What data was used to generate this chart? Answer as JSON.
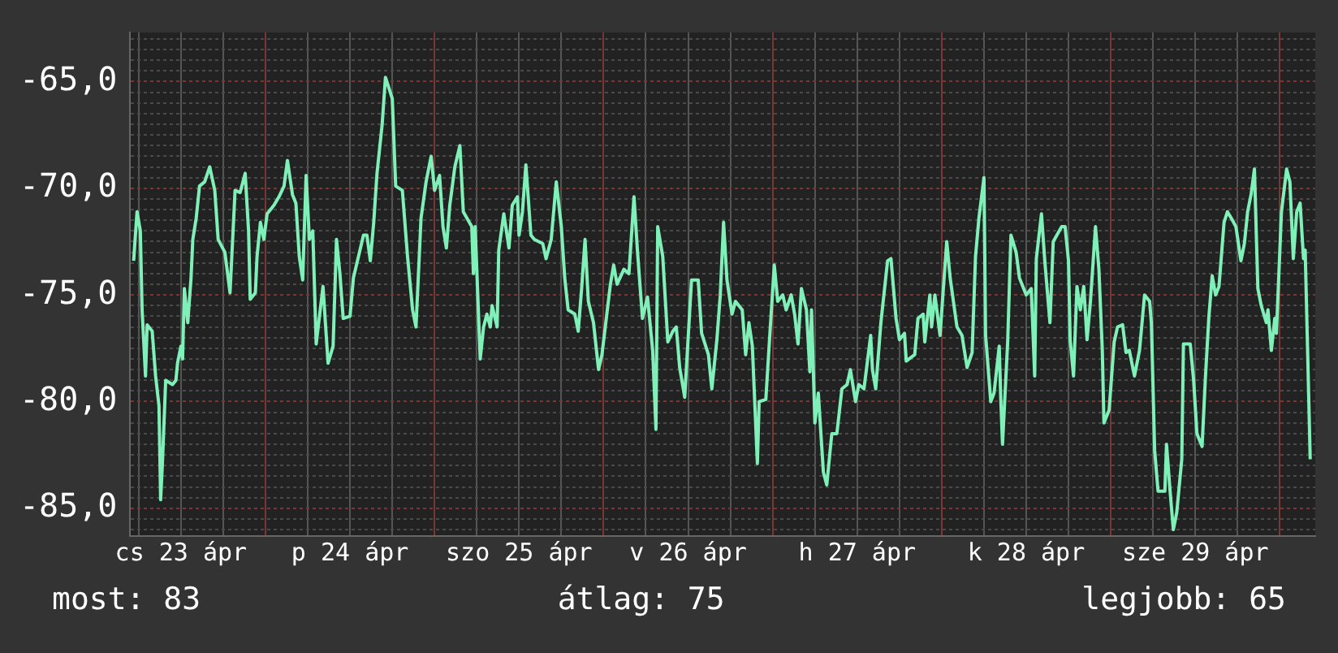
{
  "chart_data": {
    "type": "line",
    "grid": true,
    "legend": false,
    "marker": "none",
    "line_style": "solid",
    "xlim": [
      "--04-23T04:48",
      "--04-30T05:02"
    ],
    "ylim": [
      -86.3,
      -62.7
    ],
    "xticks": [
      {
        "value": "--04-23T06:00",
        "label": null
      },
      {
        "value": "--04-23T12:00",
        "label": "cs 23 ápr"
      },
      {
        "value": "--04-23T18:00",
        "label": null
      },
      {
        "value": "--04-24T00:00",
        "label": null
      },
      {
        "value": "--04-24T06:00",
        "label": null
      },
      {
        "value": "--04-24T12:00",
        "label": "p 24 ápr"
      },
      {
        "value": "--04-24T18:00",
        "label": null
      },
      {
        "value": "--04-25T00:00",
        "label": null
      },
      {
        "value": "--04-25T06:00",
        "label": null
      },
      {
        "value": "--04-25T12:00",
        "label": "szo 25 ápr"
      },
      {
        "value": "--04-25T18:00",
        "label": null
      },
      {
        "value": "--04-26T00:00",
        "label": null
      },
      {
        "value": "--04-26T06:00",
        "label": null
      },
      {
        "value": "--04-26T12:00",
        "label": "v 26 ápr"
      },
      {
        "value": "--04-26T18:00",
        "label": null
      },
      {
        "value": "--04-27T00:00",
        "label": null
      },
      {
        "value": "--04-27T06:00",
        "label": null
      },
      {
        "value": "--04-27T12:00",
        "label": "h 27 ápr"
      },
      {
        "value": "--04-27T18:00",
        "label": null
      },
      {
        "value": "--04-28T00:00",
        "label": null
      },
      {
        "value": "--04-28T06:00",
        "label": null
      },
      {
        "value": "--04-28T12:00",
        "label": "k 28 ápr"
      },
      {
        "value": "--04-28T18:00",
        "label": null
      },
      {
        "value": "--04-29T00:00",
        "label": null
      },
      {
        "value": "--04-29T06:00",
        "label": null
      },
      {
        "value": "--04-29T12:00",
        "label": "sze 29 ápr"
      },
      {
        "value": "--04-29T18:00",
        "label": null
      },
      {
        "value": "--04-30T00:00",
        "label": null
      }
    ],
    "yticks": [
      {
        "value": -86,
        "label": null
      },
      {
        "value": -85.5,
        "label": null
      },
      {
        "value": -85,
        "label": "-85,0"
      },
      {
        "value": -84.5,
        "label": null
      },
      {
        "value": -84,
        "label": null
      },
      {
        "value": -83.5,
        "label": null
      },
      {
        "value": -83,
        "label": null
      },
      {
        "value": -82.5,
        "label": null
      },
      {
        "value": -82,
        "label": null
      },
      {
        "value": -81.5,
        "label": null
      },
      {
        "value": -81,
        "label": null
      },
      {
        "value": -80.5,
        "label": null
      },
      {
        "value": -80,
        "label": "-80,0"
      },
      {
        "value": -79.5,
        "label": null
      },
      {
        "value": -79,
        "label": null
      },
      {
        "value": -78.5,
        "label": null
      },
      {
        "value": -78,
        "label": null
      },
      {
        "value": -77.5,
        "label": null
      },
      {
        "value": -77,
        "label": null
      },
      {
        "value": -76.5,
        "label": null
      },
      {
        "value": -76,
        "label": null
      },
      {
        "value": -75.5,
        "label": null
      },
      {
        "value": -75,
        "label": "-75,0"
      },
      {
        "value": -74.5,
        "label": null
      },
      {
        "value": -74,
        "label": null
      },
      {
        "value": -73.5,
        "label": null
      },
      {
        "value": -73,
        "label": null
      },
      {
        "value": -72.5,
        "label": null
      },
      {
        "value": -72,
        "label": null
      },
      {
        "value": -71.5,
        "label": null
      },
      {
        "value": -71,
        "label": null
      },
      {
        "value": -70.5,
        "label": null
      },
      {
        "value": -70,
        "label": "-70,0"
      },
      {
        "value": -69.5,
        "label": null
      },
      {
        "value": -69,
        "label": null
      },
      {
        "value": -68.5,
        "label": null
      },
      {
        "value": -68,
        "label": null
      },
      {
        "value": -67.5,
        "label": null
      },
      {
        "value": -67,
        "label": null
      },
      {
        "value": -66.5,
        "label": null
      },
      {
        "value": -66,
        "label": null
      },
      {
        "value": -65.5,
        "label": null
      },
      {
        "value": -65,
        "label": "-65,0"
      },
      {
        "value": -64.5,
        "label": null
      },
      {
        "value": -64,
        "label": null
      },
      {
        "value": -63.5,
        "label": null
      },
      {
        "value": -63,
        "label": null
      }
    ],
    "annotations": [
      "most: 83",
      "átlag: 75",
      "legjobb: 65"
    ],
    "series": [
      {
        "color": "#7ff0b8",
        "x": [
          "--04-23T05:17",
          "--04-23T05:46",
          "--04-23T06:14",
          "--04-23T06:29",
          "--04-23T06:58",
          "--04-23T07:12",
          "--04-23T07:55",
          "--04-23T08:24",
          "--04-23T08:53",
          "--04-23T09:07",
          "--04-23T09:22",
          "--04-23T09:50",
          "--04-23T10:48",
          "--04-23T11:17",
          "--04-23T11:31",
          "--04-23T12:00",
          "--04-23T12:14",
          "--04-23T12:29",
          "--04-23T12:58",
          "--04-23T13:26",
          "--04-23T13:41",
          "--04-23T14:10",
          "--04-23T14:38",
          "--04-23T15:22",
          "--04-23T16:05",
          "--04-23T16:48",
          "--04-23T17:17",
          "--04-23T18:14",
          "--04-23T18:58",
          "--04-23T19:41",
          "--04-23T20:24",
          "--04-23T21:07",
          "--04-23T21:36",
          "--04-23T21:50",
          "--04-23T22:34",
          "--04-23T22:48",
          "--04-23T23:17",
          "--04-23T23:46",
          "--04-24T00:14",
          "--04-24T01:12",
          "--04-24T01:55",
          "--04-24T02:38",
          "--04-24T03:07",
          "--04-24T03:50",
          "--04-24T04:19",
          "--04-24T04:48",
          "--04-24T05:17",
          "--04-24T05:46",
          "--04-24T06:14",
          "--04-24T06:43",
          "--04-24T07:12",
          "--04-24T08:10",
          "--04-24T08:53",
          "--04-24T09:36",
          "--04-24T10:05",
          "--04-24T10:34",
          "--04-24T11:02",
          "--04-24T12:00",
          "--04-24T12:29",
          "--04-24T13:12",
          "--04-24T13:55",
          "--04-24T14:24",
          "--04-24T14:53",
          "--04-24T15:22",
          "--04-24T15:50",
          "--04-24T16:34",
          "--04-24T17:02",
          "--04-24T18:00",
          "--04-24T18:29",
          "--04-24T19:26",
          "--04-24T20:10",
          "--04-24T20:53",
          "--04-24T21:22",
          "--04-24T22:05",
          "--04-24T22:48",
          "--04-24T23:31",
          "--04-25T00:00",
          "--04-25T00:43",
          "--04-25T01:12",
          "--04-25T01:41",
          "--04-25T02:10",
          "--04-25T02:53",
          "--04-25T03:36",
          "--04-25T04:05",
          "--04-25T05:17",
          "--04-25T05:31",
          "--04-25T05:46",
          "--04-25T06:29",
          "--04-25T06:58",
          "--04-25T07:26",
          "--04-25T07:55",
          "--04-25T08:10",
          "--04-25T08:53",
          "--04-25T09:07",
          "--04-25T09:50",
          "--04-25T10:34",
          "--04-25T11:02",
          "--04-25T11:46",
          "--04-25T12:00",
          "--04-25T12:29",
          "--04-25T12:58",
          "--04-25T13:41",
          "--04-25T14:10",
          "--04-25T15:22",
          "--04-25T15:50",
          "--04-25T16:34",
          "--04-25T17:17",
          "--04-25T18:00",
          "--04-25T18:29",
          "--04-25T18:58",
          "--04-25T19:55",
          "--04-25T20:24",
          "--04-25T20:53",
          "--04-25T21:22",
          "--04-25T21:50",
          "--04-25T22:34",
          "--04-25T23:17",
          "--04-25T23:46",
          "--04-26T00:58",
          "--04-26T01:26",
          "--04-26T01:55",
          "--04-26T02:53",
          "--04-26T03:36",
          "--04-26T04:19",
          "--04-26T04:48",
          "--04-26T05:31",
          "--04-26T06:14",
          "--04-26T06:58",
          "--04-26T07:26",
          "--04-26T07:41",
          "--04-26T08:24",
          "--04-26T09:07",
          "--04-26T09:50",
          "--04-26T10:19",
          "--04-26T10:48",
          "--04-26T11:31",
          "--04-26T12:29",
          "--04-26T13:26",
          "--04-26T13:55",
          "--04-26T14:53",
          "--04-26T15:22",
          "--04-26T16:05",
          "--04-26T16:34",
          "--04-26T17:02",
          "--04-26T17:31",
          "--04-26T18:14",
          "--04-26T18:43",
          "--04-26T19:41",
          "--04-26T20:10",
          "--04-26T20:38",
          "--04-26T21:07",
          "--04-26T21:50",
          "--04-26T22:05",
          "--04-26T23:02",
          "--04-26T23:31",
          "--04-27T00:14",
          "--04-27T00:43",
          "--04-27T01:26",
          "--04-27T01:55",
          "--04-27T02:38",
          "--04-27T03:07",
          "--04-27T03:36",
          "--04-27T04:05",
          "--04-27T04:48",
          "--04-27T05:17",
          "--04-27T05:31",
          "--04-27T06:00",
          "--04-27T06:29",
          "--04-27T07:12",
          "--04-27T07:41",
          "--04-27T08:24",
          "--04-27T09:07",
          "--04-27T09:50",
          "--04-27T10:34",
          "--04-27T11:02",
          "--04-27T11:46",
          "--04-27T12:14",
          "--04-27T12:58",
          "--04-27T13:55",
          "--04-27T14:10",
          "--04-27T14:38",
          "--04-27T15:22",
          "--04-27T16:19",
          "--04-27T16:48",
          "--04-27T17:31",
          "--04-27T18:00",
          "--04-27T18:43",
          "--04-27T18:58",
          "--04-27T20:10",
          "--04-27T20:38",
          "--04-27T21:22",
          "--04-27T21:36",
          "--04-27T22:19",
          "--04-27T22:34",
          "--04-27T23:02",
          "--04-27T23:46",
          "--04-28T00:14",
          "--04-28T00:43",
          "--04-28T01:12",
          "--04-28T02:10",
          "--04-28T02:53",
          "--04-28T03:36",
          "--04-28T04:19",
          "--04-28T04:48",
          "--04-28T05:17",
          "--04-28T06:00",
          "--04-28T06:14",
          "--04-28T06:58",
          "--04-28T07:26",
          "--04-28T08:10",
          "--04-28T08:24",
          "--04-28T08:38",
          "--04-28T09:22",
          "--04-28T09:50",
          "--04-28T10:34",
          "--04-28T11:02",
          "--04-28T12:00",
          "--04-28T12:43",
          "--04-28T13:12",
          "--04-28T13:26",
          "--04-28T14:10",
          "--04-28T14:38",
          "--04-28T15:22",
          "--04-28T15:50",
          "--04-28T17:02",
          "--04-28T17:31",
          "--04-28T18:00",
          "--04-28T18:14",
          "--04-28T18:43",
          "--04-28T19:12",
          "--04-28T19:41",
          "--04-28T20:10",
          "--04-28T20:38",
          "--04-28T21:07",
          "--04-28T21:50",
          "--04-28T22:19",
          "--04-28T22:48",
          "--04-28T23:02",
          "--04-28T23:46",
          "--04-29T00:29",
          "--04-29T00:58",
          "--04-29T01:41",
          "--04-29T02:10",
          "--04-29T02:38",
          "--04-29T03:22",
          "--04-29T04:05",
          "--04-29T04:48",
          "--04-29T05:31",
          "--04-29T05:46",
          "--04-29T06:14",
          "--04-29T06:43",
          "--04-29T07:41",
          "--04-29T07:55",
          "--04-29T08:24",
          "--04-29T08:53",
          "--04-29T09:22",
          "--04-29T10:05",
          "--04-29T10:19",
          "--04-29T11:17",
          "--04-29T11:46",
          "--04-29T12:14",
          "--04-29T12:58",
          "--04-29T13:26",
          "--04-29T13:55",
          "--04-29T14:24",
          "--04-29T14:53",
          "--04-29T15:22",
          "--04-29T16:05",
          "--04-29T16:34",
          "--04-29T17:17",
          "--04-29T17:46",
          "--04-29T18:29",
          "--04-29T18:58",
          "--04-29T19:26",
          "--04-29T19:55",
          "--04-29T20:24",
          "--04-29T20:53",
          "--04-29T21:22",
          "--04-29T22:05",
          "--04-29T22:19",
          "--04-29T22:48",
          "--04-29T23:17",
          "--04-29T23:31",
          "--04-30T00:14",
          "--04-30T00:58",
          "--04-30T01:26",
          "--04-30T01:55",
          "--04-30T02:24",
          "--04-30T02:53",
          "--04-30T03:22",
          "--04-30T03:36",
          "--04-30T04:19"
        ],
        "values": [
          -73.4,
          -71.1,
          -72.0,
          -75.7,
          -78.8,
          -76.4,
          -76.7,
          -78.8,
          -80.2,
          -84.6,
          -82.9,
          -79.0,
          -79.2,
          -79.0,
          -78.2,
          -77.4,
          -78.0,
          -74.7,
          -76.3,
          -74.2,
          -72.4,
          -71.4,
          -69.9,
          -69.7,
          -69.0,
          -70.1,
          -72.4,
          -73.0,
          -74.9,
          -70.1,
          -70.2,
          -69.3,
          -72.0,
          -75.2,
          -74.9,
          -73.2,
          -71.6,
          -72.4,
          -71.2,
          -70.8,
          -70.4,
          -69.9,
          -68.7,
          -70.3,
          -70.7,
          -73.2,
          -74.3,
          -69.4,
          -72.4,
          -72.0,
          -77.3,
          -74.6,
          -78.2,
          -77.4,
          -72.4,
          -74.0,
          -76.1,
          -76.0,
          -74.2,
          -73.2,
          -72.2,
          -72.2,
          -73.4,
          -71.6,
          -69.3,
          -67.0,
          -64.8,
          -65.8,
          -69.9,
          -70.1,
          -73.2,
          -75.7,
          -76.5,
          -71.4,
          -69.7,
          -68.5,
          -70.1,
          -69.4,
          -71.8,
          -72.8,
          -70.8,
          -69.0,
          -68.0,
          -71.1,
          -71.8,
          -74.0,
          -71.8,
          -78.0,
          -76.5,
          -75.9,
          -76.5,
          -75.5,
          -76.5,
          -72.9,
          -71.2,
          -72.8,
          -70.8,
          -70.4,
          -72.2,
          -71.1,
          -68.9,
          -72.2,
          -72.4,
          -72.6,
          -73.3,
          -72.4,
          -69.7,
          -71.8,
          -74.2,
          -75.7,
          -75.9,
          -76.7,
          -74.7,
          -72.4,
          -75.3,
          -76.3,
          -78.5,
          -77.8,
          -74.5,
          -73.6,
          -74.5,
          -73.8,
          -74.0,
          -70.4,
          -72.9,
          -76.1,
          -75.1,
          -77.6,
          -81.3,
          -71.8,
          -73.2,
          -77.2,
          -76.7,
          -76.5,
          -78.4,
          -79.8,
          -74.3,
          -74.3,
          -76.8,
          -77.8,
          -79.4,
          -77.1,
          -75.0,
          -71.6,
          -74.3,
          -75.9,
          -75.3,
          -75.7,
          -77.8,
          -76.3,
          -77.4,
          -82.9,
          -80.0,
          -79.9,
          -77.3,
          -73.6,
          -75.3,
          -75.0,
          -75.7,
          -75.0,
          -75.9,
          -77.3,
          -74.7,
          -75.7,
          -78.6,
          -75.7,
          -81.0,
          -79.6,
          -83.3,
          -83.9,
          -81.5,
          -81.5,
          -79.4,
          -79.2,
          -78.5,
          -80.0,
          -79.2,
          -79.4,
          -76.9,
          -78.5,
          -79.4,
          -76.3,
          -73.4,
          -73.3,
          -76.1,
          -77.1,
          -76.8,
          -78.1,
          -77.8,
          -76.1,
          -75.9,
          -77.2,
          -75.0,
          -76.5,
          -75.0,
          -76.9,
          -74.7,
          -72.5,
          -74.2,
          -76.5,
          -76.9,
          -78.4,
          -77.7,
          -73.2,
          -71.4,
          -69.5,
          -76.9,
          -80.0,
          -79.6,
          -77.4,
          -80.0,
          -82.0,
          -77.2,
          -72.2,
          -73.0,
          -74.2,
          -75.0,
          -74.7,
          -78.8,
          -73.3,
          -71.2,
          -73.4,
          -76.3,
          -72.5,
          -71.8,
          -71.8,
          -73.4,
          -77.1,
          -78.8,
          -74.6,
          -75.7,
          -74.6,
          -77.1,
          -75.3,
          -71.8,
          -73.8,
          -77.6,
          -81.0,
          -80.4,
          -77.2,
          -76.5,
          -76.4,
          -77.7,
          -77.6,
          -78.8,
          -77.6,
          -75.0,
          -75.3,
          -76.3,
          -82.3,
          -84.2,
          -84.2,
          -82.0,
          -84.1,
          -86.0,
          -85.2,
          -82.7,
          -77.3,
          -77.3,
          -79.0,
          -81.5,
          -82.1,
          -78.9,
          -76.1,
          -74.1,
          -75.0,
          -74.6,
          -71.6,
          -71.1,
          -71.5,
          -71.8,
          -73.4,
          -72.6,
          -71.1,
          -70.3,
          -69.1,
          -74.7,
          -75.5,
          -76.3,
          -75.7,
          -77.6,
          -76.1,
          -76.8,
          -71.1,
          -69.1,
          -69.7,
          -73.3,
          -71.1,
          -70.7,
          -73.3,
          -72.9,
          -82.7
        ]
      }
    ]
  }
}
